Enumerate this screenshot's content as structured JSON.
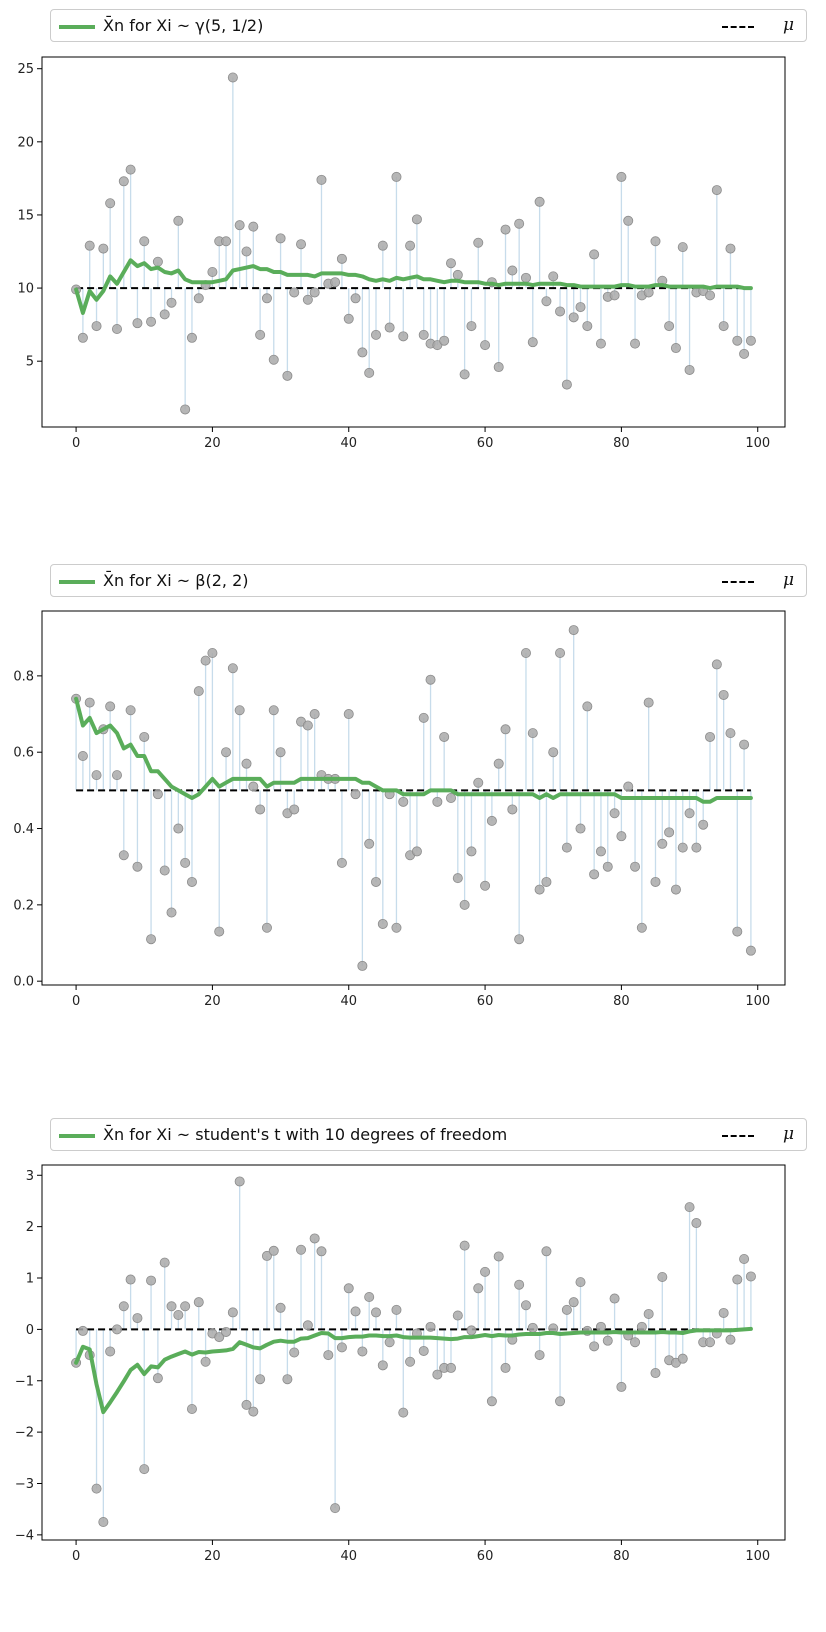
{
  "colors": {
    "mean_line": "#5aad5a",
    "stem": "#c7dceb",
    "point": "#a9a9a9",
    "point_edge": "#8c8c8c",
    "mu_line": "#000000"
  },
  "chart_data": [
    {
      "type": "scatter",
      "legend": {
        "mean_label": "X̄n for Xi ~ γ(5, 1/2)",
        "mu_label": "μ",
        "placement": "top"
      },
      "mu": 10,
      "xlim": [
        -5,
        104
      ],
      "ylim": [
        0.5,
        25.8
      ],
      "xticks": [
        "0",
        "20",
        "40",
        "60",
        "80",
        "100"
      ],
      "xtick_values": [
        0,
        20,
        40,
        60,
        80,
        100
      ],
      "yticks": [
        "5",
        "10",
        "15",
        "20",
        "25"
      ],
      "ytick_values": [
        5,
        10,
        15,
        20,
        25
      ],
      "values": [
        9.9,
        6.6,
        12.9,
        7.4,
        12.7,
        15.8,
        7.2,
        17.3,
        18.1,
        7.6,
        13.2,
        7.7,
        11.8,
        8.2,
        9.0,
        14.6,
        1.7,
        6.6,
        9.3,
        10.2,
        11.1,
        13.2,
        13.2,
        24.4,
        14.3,
        12.5,
        14.2,
        6.8,
        9.3,
        5.1,
        13.4,
        4.0,
        9.7,
        13.0,
        9.2,
        9.7,
        17.4,
        10.3,
        10.4,
        12.0,
        7.9,
        9.3,
        5.6,
        4.2,
        6.8,
        12.9,
        7.3,
        17.6,
        6.7,
        12.9,
        14.7,
        6.8,
        6.2,
        6.1,
        6.4,
        11.7,
        10.9,
        4.1,
        7.4,
        13.1,
        6.1,
        10.4,
        4.6,
        14.0,
        11.2,
        14.4,
        10.7,
        6.3,
        15.9,
        9.1,
        10.8,
        8.4,
        3.4,
        8.0,
        8.7,
        7.4,
        12.3,
        6.2,
        9.4,
        9.5,
        17.6,
        14.6,
        6.2,
        9.5,
        9.7,
        13.2,
        10.5,
        7.4,
        5.9,
        12.8,
        4.4,
        9.7,
        9.8,
        9.5,
        16.7,
        7.4,
        12.7,
        6.4,
        5.5,
        6.4
      ],
      "running_mean": [
        9.9,
        8.3,
        9.8,
        9.2,
        9.8,
        10.8,
        10.3,
        11.1,
        11.9,
        11.5,
        11.7,
        11.3,
        11.4,
        11.1,
        11.0,
        11.2,
        10.6,
        10.4,
        10.4,
        10.4,
        10.4,
        10.5,
        10.6,
        11.2,
        11.3,
        11.4,
        11.5,
        11.3,
        11.3,
        11.1,
        11.1,
        10.9,
        10.9,
        10.9,
        10.9,
        10.8,
        11.0,
        11.0,
        11.0,
        11.0,
        10.9,
        10.9,
        10.8,
        10.6,
        10.5,
        10.6,
        10.5,
        10.7,
        10.6,
        10.7,
        10.8,
        10.6,
        10.6,
        10.5,
        10.4,
        10.5,
        10.5,
        10.4,
        10.4,
        10.4,
        10.3,
        10.3,
        10.2,
        10.3,
        10.3,
        10.3,
        10.3,
        10.2,
        10.3,
        10.3,
        10.3,
        10.3,
        10.2,
        10.2,
        10.1,
        10.1,
        10.1,
        10.1,
        10.1,
        10.1,
        10.2,
        10.2,
        10.1,
        10.1,
        10.1,
        10.2,
        10.2,
        10.1,
        10.1,
        10.1,
        10.1,
        10.1,
        10.1,
        10.0,
        10.1,
        10.1,
        10.1,
        10.1,
        10.0,
        10.0
      ]
    },
    {
      "type": "scatter",
      "legend": {
        "mean_label": "X̄n for Xi ~ β(2, 2)",
        "mu_label": "μ",
        "placement": "top"
      },
      "mu": 0.5,
      "xlim": [
        -5,
        104
      ],
      "ylim": [
        -0.01,
        0.97
      ],
      "xticks": [
        "0",
        "20",
        "40",
        "60",
        "80",
        "100"
      ],
      "xtick_values": [
        0,
        20,
        40,
        60,
        80,
        100
      ],
      "yticks": [
        "0.0",
        "0.2",
        "0.4",
        "0.6",
        "0.8"
      ],
      "ytick_values": [
        0.0,
        0.2,
        0.4,
        0.6,
        0.8
      ],
      "values": [
        0.74,
        0.59,
        0.73,
        0.54,
        0.66,
        0.72,
        0.54,
        0.33,
        0.71,
        0.3,
        0.64,
        0.11,
        0.49,
        0.29,
        0.18,
        0.4,
        0.31,
        0.26,
        0.76,
        0.84,
        0.86,
        0.13,
        0.6,
        0.82,
        0.71,
        0.57,
        0.51,
        0.45,
        0.14,
        0.71,
        0.6,
        0.44,
        0.45,
        0.68,
        0.67,
        0.7,
        0.54,
        0.53,
        0.53,
        0.31,
        0.7,
        0.49,
        0.04,
        0.36,
        0.26,
        0.15,
        0.49,
        0.14,
        0.47,
        0.33,
        0.34,
        0.69,
        0.79,
        0.47,
        0.64,
        0.48,
        0.27,
        0.2,
        0.34,
        0.52,
        0.25,
        0.42,
        0.57,
        0.66,
        0.45,
        0.11,
        0.86,
        0.65,
        0.24,
        0.26,
        0.6,
        0.86,
        0.35,
        0.92,
        0.4,
        0.72,
        0.28,
        0.34,
        0.3,
        0.44,
        0.38,
        0.51,
        0.3,
        0.14,
        0.73,
        0.26,
        0.36,
        0.39,
        0.24,
        0.35,
        0.44,
        0.35,
        0.41,
        0.64,
        0.83,
        0.75,
        0.65,
        0.13,
        0.62,
        0.08
      ],
      "running_mean": [
        0.74,
        0.67,
        0.69,
        0.65,
        0.66,
        0.67,
        0.65,
        0.61,
        0.62,
        0.59,
        0.59,
        0.55,
        0.55,
        0.53,
        0.51,
        0.5,
        0.49,
        0.48,
        0.49,
        0.51,
        0.53,
        0.51,
        0.52,
        0.53,
        0.53,
        0.53,
        0.53,
        0.53,
        0.51,
        0.52,
        0.52,
        0.52,
        0.52,
        0.53,
        0.53,
        0.53,
        0.53,
        0.53,
        0.53,
        0.53,
        0.53,
        0.53,
        0.52,
        0.52,
        0.51,
        0.5,
        0.5,
        0.5,
        0.49,
        0.49,
        0.49,
        0.49,
        0.5,
        0.5,
        0.5,
        0.5,
        0.49,
        0.49,
        0.49,
        0.49,
        0.49,
        0.49,
        0.49,
        0.49,
        0.49,
        0.49,
        0.49,
        0.49,
        0.48,
        0.49,
        0.48,
        0.49,
        0.49,
        0.49,
        0.49,
        0.49,
        0.49,
        0.49,
        0.49,
        0.49,
        0.48,
        0.48,
        0.48,
        0.48,
        0.48,
        0.48,
        0.48,
        0.48,
        0.48,
        0.48,
        0.48,
        0.48,
        0.47,
        0.47,
        0.48,
        0.48,
        0.48,
        0.48,
        0.48,
        0.48
      ]
    },
    {
      "type": "scatter",
      "legend": {
        "mean_label": "X̄n for Xi ~ student's t with 10 degrees of freedom",
        "mu_label": "μ",
        "placement": "top"
      },
      "mu": 0,
      "xlim": [
        -5,
        104
      ],
      "ylim": [
        -4.1,
        3.2
      ],
      "xticks": [
        "0",
        "20",
        "40",
        "60",
        "80",
        "100"
      ],
      "xtick_values": [
        0,
        20,
        40,
        60,
        80,
        100
      ],
      "yticks": [
        "−4",
        "−3",
        "−2",
        "−1",
        "0",
        "1",
        "2",
        "3"
      ],
      "ytick_values": [
        -4,
        -3,
        -2,
        -1,
        0,
        1,
        2,
        3
      ],
      "values": [
        -0.65,
        -0.03,
        -0.5,
        -3.1,
        -3.75,
        -0.43,
        0.0,
        0.45,
        0.97,
        0.22,
        -2.72,
        0.95,
        -0.95,
        1.3,
        0.45,
        0.28,
        0.45,
        -1.55,
        0.53,
        -0.63,
        -0.08,
        -0.15,
        -0.05,
        0.33,
        2.88,
        -1.47,
        -1.6,
        -0.97,
        1.43,
        1.53,
        0.42,
        -0.97,
        -0.45,
        1.55,
        0.08,
        1.77,
        1.52,
        -0.5,
        -3.48,
        -0.35,
        0.8,
        0.35,
        -0.43,
        0.63,
        0.33,
        -0.7,
        -0.25,
        0.38,
        -1.62,
        -0.63,
        -0.08,
        -0.42,
        0.05,
        -0.88,
        -0.75,
        -0.75,
        0.27,
        1.63,
        -0.02,
        0.8,
        1.12,
        -1.4,
        1.42,
        -0.75,
        -0.2,
        0.87,
        0.47,
        0.03,
        -0.5,
        1.52,
        0.02,
        -1.4,
        0.38,
        0.53,
        0.92,
        -0.03,
        -0.33,
        0.05,
        -0.22,
        0.6,
        -1.12,
        -0.12,
        -0.25,
        0.05,
        0.3,
        -0.85,
        1.02,
        -0.6,
        -0.65,
        -0.57,
        2.38,
        2.07,
        -0.25,
        -0.25,
        -0.08,
        0.32,
        -0.2,
        0.97,
        1.37,
        1.03
      ],
      "running_mean": [
        -0.65,
        -0.34,
        -0.39,
        -1.07,
        -1.61,
        -1.42,
        -1.22,
        -1.01,
        -0.79,
        -0.69,
        -0.87,
        -0.72,
        -0.74,
        -0.59,
        -0.53,
        -0.48,
        -0.43,
        -0.49,
        -0.44,
        -0.45,
        -0.43,
        -0.42,
        -0.41,
        -0.38,
        -0.25,
        -0.3,
        -0.35,
        -0.37,
        -0.3,
        -0.24,
        -0.22,
        -0.24,
        -0.24,
        -0.18,
        -0.17,
        -0.12,
        -0.07,
        -0.08,
        -0.17,
        -0.17,
        -0.15,
        -0.14,
        -0.14,
        -0.12,
        -0.12,
        -0.13,
        -0.13,
        -0.12,
        -0.15,
        -0.16,
        -0.16,
        -0.16,
        -0.16,
        -0.17,
        -0.18,
        -0.19,
        -0.18,
        -0.15,
        -0.15,
        -0.13,
        -0.11,
        -0.13,
        -0.11,
        -0.12,
        -0.12,
        -0.1,
        -0.09,
        -0.09,
        -0.09,
        -0.07,
        -0.07,
        -0.09,
        -0.08,
        -0.07,
        -0.06,
        -0.06,
        -0.06,
        -0.06,
        -0.06,
        -0.05,
        -0.06,
        -0.06,
        -0.06,
        -0.06,
        -0.06,
        -0.06,
        -0.05,
        -0.06,
        -0.06,
        -0.07,
        -0.04,
        -0.02,
        -0.02,
        -0.02,
        -0.02,
        -0.02,
        -0.02,
        -0.01,
        0.0,
        0.01
      ]
    }
  ]
}
